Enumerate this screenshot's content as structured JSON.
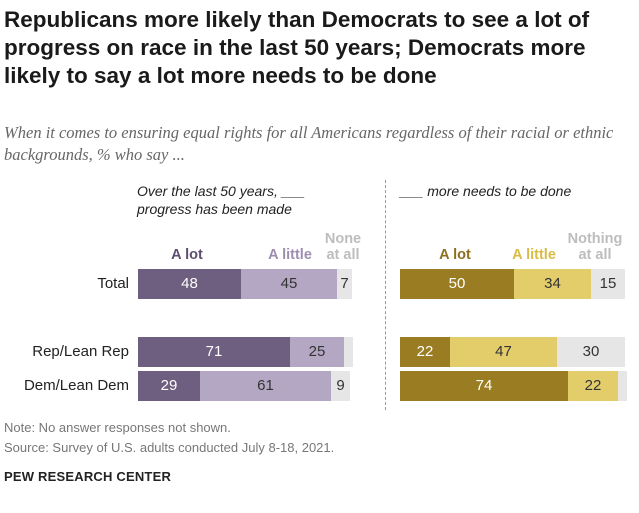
{
  "title": "Republicans more likely than Democrats to see a lot of progress on race in the last 50 years; Democrats more likely to say a lot more needs to be done",
  "subtitle": "When it comes to ensuring equal rights for all Americans regardless of their racial or ethnic backgrounds, % who say ...",
  "note": "Note: No answer responses not shown.",
  "source": "Source: Survey of U.S. adults conducted July 8-18, 2021.",
  "brand": "PEW RESEARCH CENTER",
  "chart_data": [
    {
      "type": "bar",
      "orientation": "horizontal",
      "stacked": true,
      "panel_title_line1": "Over the last 50 years, ___",
      "panel_title_line2": "progress has been made",
      "categories": [
        "Total",
        "Rep/Lean Rep",
        "Dem/Lean Dem"
      ],
      "series": [
        {
          "label_line1": "A lot",
          "label_line2": "",
          "color": "#6e5e80",
          "label_color": "#5d4e70",
          "text_color": "#ffffff",
          "values": [
            48,
            71,
            29
          ]
        },
        {
          "label_line1": "A little",
          "label_line2": "",
          "color": "#b3a7c3",
          "label_color": "#9d8eb0",
          "text_color": "#333333",
          "values": [
            45,
            25,
            61
          ]
        },
        {
          "label_line1": "None",
          "label_line2": "at all",
          "color": "#e6e6e6",
          "label_color": "#bdbdbd",
          "text_color": "#333333",
          "values": [
            7,
            4,
            9
          ],
          "value_labels": [
            "7",
            "",
            "9"
          ]
        }
      ]
    },
    {
      "type": "bar",
      "orientation": "horizontal",
      "stacked": true,
      "panel_title_line1": "___ more needs to be done",
      "panel_title_line2": "",
      "categories": [
        "Total",
        "Rep/Lean Rep",
        "Dem/Lean Dem"
      ],
      "series": [
        {
          "label_line1": "A lot",
          "label_line2": "",
          "color": "#9a7d22",
          "label_color": "#8c7020",
          "text_color": "#ffffff",
          "values": [
            50,
            22,
            74
          ]
        },
        {
          "label_line1": "A little",
          "label_line2": "",
          "color": "#e3cd6b",
          "label_color": "#d9bc45",
          "text_color": "#333333",
          "values": [
            34,
            47,
            22
          ]
        },
        {
          "label_line1": "Nothing",
          "label_line2": "at all",
          "color": "#e6e6e6",
          "label_color": "#bdbdbd",
          "text_color": "#333333",
          "values": [
            15,
            30,
            4
          ],
          "value_labels": [
            "15",
            "30",
            ""
          ]
        }
      ]
    }
  ]
}
